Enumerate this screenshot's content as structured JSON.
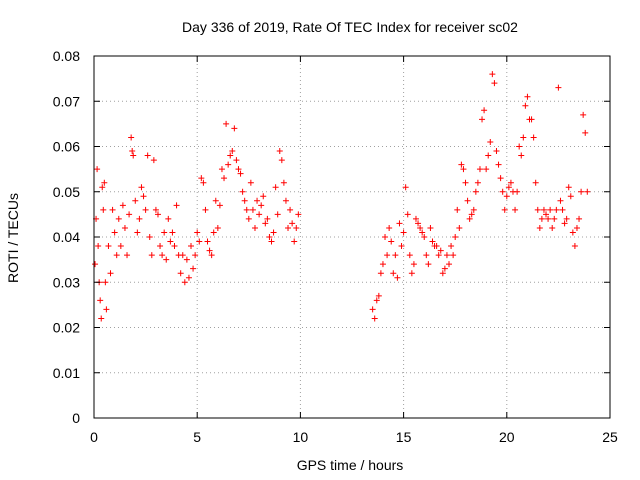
{
  "chart_data": {
    "type": "scatter",
    "title": "Day 336 of 2019, Rate Of TEC Index for receiver sc02",
    "xlabel": "GPS time / hours",
    "ylabel": "ROTI / TECUs",
    "xlim": [
      0,
      25
    ],
    "ylim": [
      0,
      0.08
    ],
    "grid": true,
    "legend": "none",
    "marker": "+",
    "color": "#ff0000",
    "xticks": [
      0,
      5,
      10,
      15,
      20,
      25
    ],
    "xtick_labels": [
      "0",
      "5",
      "10",
      "15",
      "20",
      "25"
    ],
    "yticks": [
      0,
      0.01,
      0.02,
      0.03,
      0.04,
      0.05,
      0.06,
      0.07,
      0.08
    ],
    "ytick_labels": [
      "0",
      "0.01",
      "0.02",
      "0.03",
      "0.04",
      "0.05",
      "0.06",
      "0.07",
      "0.08"
    ],
    "series": [
      {
        "x": [
          0.05,
          0.1,
          0.15,
          0.2,
          0.25,
          0.3,
          0.35,
          0.4,
          0.45,
          0.5,
          0.55,
          0.6,
          0.7,
          0.8,
          0.9,
          1.0,
          1.1,
          1.2,
          1.3,
          1.4,
          1.5,
          1.6,
          1.7,
          1.8,
          1.85,
          1.9,
          2.0,
          2.1,
          2.2,
          2.3,
          2.4,
          2.5,
          2.6,
          2.7,
          2.8,
          2.9,
          3.0,
          3.1,
          3.2,
          3.3,
          3.4,
          3.5,
          3.6,
          3.7,
          3.8,
          3.9,
          4.0,
          4.1,
          4.2,
          4.3,
          4.4,
          4.5,
          4.6,
          4.7,
          4.8,
          4.9,
          5.0,
          5.1,
          5.2,
          5.3,
          5.4,
          5.5,
          5.6,
          5.7,
          5.8,
          5.9,
          6.0,
          6.1,
          6.2,
          6.3,
          6.4,
          6.5,
          6.6,
          6.7,
          6.8,
          6.9,
          7.0,
          7.1,
          7.2,
          7.3,
          7.4,
          7.5,
          7.6,
          7.7,
          7.8,
          7.9,
          8.0,
          8.1,
          8.2,
          8.3,
          8.4,
          8.5,
          8.6,
          8.7,
          8.8,
          8.9,
          9.0,
          9.1,
          9.2,
          9.3,
          9.4,
          9.5,
          9.6,
          9.7,
          9.8,
          9.9,
          13.5,
          13.6,
          13.7,
          13.8,
          13.9,
          14.0,
          14.1,
          14.2,
          14.3,
          14.4,
          14.5,
          14.6,
          14.7,
          14.8,
          14.9,
          15.0,
          15.1,
          15.2,
          15.3,
          15.4,
          15.5,
          15.6,
          15.7,
          15.8,
          15.9,
          16.0,
          16.1,
          16.2,
          16.3,
          16.4,
          16.5,
          16.6,
          16.7,
          16.8,
          16.9,
          17.0,
          17.1,
          17.2,
          17.3,
          17.4,
          17.5,
          17.6,
          17.7,
          17.8,
          17.9,
          18.0,
          18.1,
          18.2,
          18.3,
          18.4,
          18.5,
          18.6,
          18.7,
          18.8,
          18.9,
          19.0,
          19.1,
          19.2,
          19.3,
          19.4,
          19.5,
          19.6,
          19.7,
          19.8,
          19.9,
          20.0,
          20.1,
          20.2,
          20.3,
          20.4,
          20.5,
          20.6,
          20.7,
          20.8,
          20.9,
          21.0,
          21.1,
          21.2,
          21.3,
          21.4,
          21.5,
          21.6,
          21.7,
          21.8,
          21.9,
          22.0,
          22.1,
          22.2,
          22.3,
          22.4,
          22.5,
          22.6,
          22.7,
          22.8,
          22.9,
          23.0,
          23.1,
          23.2,
          23.3,
          23.4,
          23.5,
          23.6,
          23.7,
          23.8,
          23.9
        ],
        "y": [
          0.034,
          0.044,
          0.055,
          0.038,
          0.03,
          0.026,
          0.022,
          0.051,
          0.046,
          0.052,
          0.03,
          0.024,
          0.038,
          0.032,
          0.046,
          0.041,
          0.036,
          0.044,
          0.038,
          0.047,
          0.042,
          0.036,
          0.045,
          0.062,
          0.059,
          0.058,
          0.048,
          0.041,
          0.044,
          0.051,
          0.049,
          0.046,
          0.058,
          0.04,
          0.036,
          0.057,
          0.046,
          0.045,
          0.038,
          0.036,
          0.041,
          0.035,
          0.044,
          0.039,
          0.041,
          0.038,
          0.047,
          0.036,
          0.032,
          0.036,
          0.03,
          0.035,
          0.031,
          0.038,
          0.033,
          0.036,
          0.041,
          0.039,
          0.053,
          0.052,
          0.046,
          0.039,
          0.037,
          0.036,
          0.041,
          0.048,
          0.042,
          0.047,
          0.055,
          0.053,
          0.065,
          0.056,
          0.058,
          0.059,
          0.064,
          0.057,
          0.055,
          0.054,
          0.05,
          0.048,
          0.046,
          0.044,
          0.052,
          0.046,
          0.042,
          0.048,
          0.045,
          0.047,
          0.049,
          0.043,
          0.044,
          0.04,
          0.039,
          0.041,
          0.051,
          0.045,
          0.059,
          0.057,
          0.052,
          0.048,
          0.042,
          0.046,
          0.043,
          0.039,
          0.042,
          0.045,
          0.024,
          0.022,
          0.026,
          0.027,
          0.032,
          0.034,
          0.04,
          0.036,
          0.042,
          0.039,
          0.032,
          0.036,
          0.031,
          0.043,
          0.038,
          0.041,
          0.051,
          0.045,
          0.036,
          0.032,
          0.034,
          0.044,
          0.043,
          0.042,
          0.041,
          0.04,
          0.036,
          0.034,
          0.042,
          0.039,
          0.038,
          0.038,
          0.036,
          0.037,
          0.032,
          0.033,
          0.036,
          0.034,
          0.038,
          0.036,
          0.04,
          0.046,
          0.042,
          0.056,
          0.055,
          0.052,
          0.048,
          0.044,
          0.045,
          0.046,
          0.05,
          0.052,
          0.055,
          0.066,
          0.068,
          0.055,
          0.058,
          0.061,
          0.076,
          0.074,
          0.059,
          0.056,
          0.053,
          0.05,
          0.046,
          0.049,
          0.051,
          0.052,
          0.05,
          0.046,
          0.05,
          0.06,
          0.058,
          0.062,
          0.069,
          0.071,
          0.066,
          0.066,
          0.062,
          0.052,
          0.046,
          0.042,
          0.044,
          0.046,
          0.045,
          0.044,
          0.046,
          0.042,
          0.044,
          0.046,
          0.073,
          0.048,
          0.046,
          0.043,
          0.044,
          0.051,
          0.049,
          0.041,
          0.038,
          0.042,
          0.044,
          0.05,
          0.067,
          0.063,
          0.05
        ]
      }
    ]
  }
}
